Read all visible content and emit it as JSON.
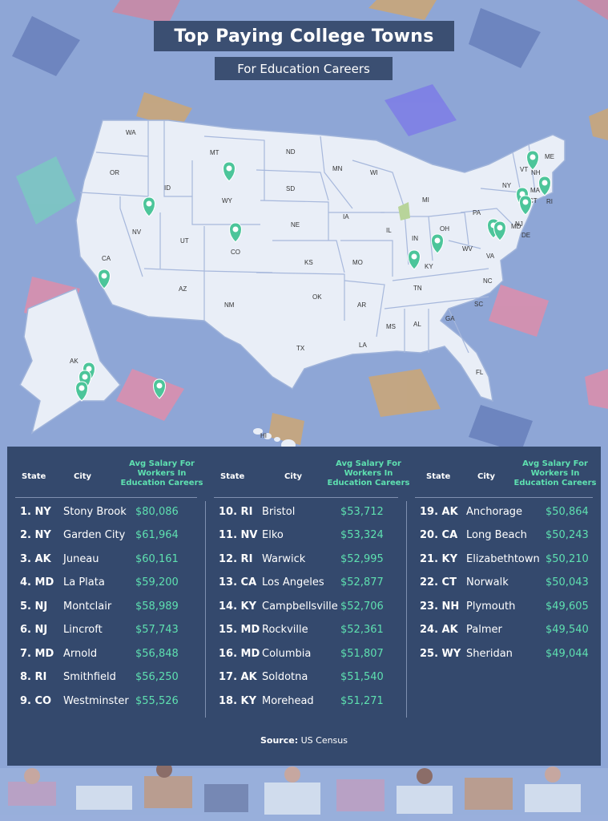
{
  "title": "Top Paying College Towns",
  "subtitle": "For Education Careers",
  "table": {
    "headers": {
      "state": "State",
      "city": "City",
      "salary": "Avg Salary For Workers In Education Careers"
    },
    "columns": [
      [
        {
          "state": "1. NY",
          "city": "Stony Brook",
          "salary": "$80,086"
        },
        {
          "state": "2. NY",
          "city": "Garden City",
          "salary": "$61,964"
        },
        {
          "state": "3. AK",
          "city": "Juneau",
          "salary": "$60,161"
        },
        {
          "state": "4. MD",
          "city": "La Plata",
          "salary": "$59,200"
        },
        {
          "state": "5. NJ",
          "city": "Montclair",
          "salary": "$58,989"
        },
        {
          "state": "6. NJ",
          "city": "Lincroft",
          "salary": "$57,743"
        },
        {
          "state": "7. MD",
          "city": "Arnold",
          "salary": "$56,848"
        },
        {
          "state": "8. RI",
          "city": "Smithfield",
          "salary": "$56,250"
        },
        {
          "state": "9. CO",
          "city": "Westminster",
          "salary": "$55,526"
        }
      ],
      [
        {
          "state": "10. RI",
          "city": "Bristol",
          "salary": "$53,712"
        },
        {
          "state": "11. NV",
          "city": "Elko",
          "salary": "$53,324"
        },
        {
          "state": "12. RI",
          "city": "Warwick",
          "salary": "$52,995"
        },
        {
          "state": "13. CA",
          "city": "Los Angeles",
          "salary": "$52,877"
        },
        {
          "state": "14. KY",
          "city": "Campbellsville",
          "salary": "$52,706"
        },
        {
          "state": "15. MD",
          "city": "Rockville",
          "salary": "$52,361"
        },
        {
          "state": "16. MD",
          "city": "Columbia",
          "salary": "$51,807"
        },
        {
          "state": "17. AK",
          "city": "Soldotna",
          "salary": "$51,540"
        },
        {
          "state": "18. KY",
          "city": "Morehead",
          "salary": "$51,271"
        }
      ],
      [
        {
          "state": "19. AK",
          "city": "Anchorage",
          "salary": "$50,864"
        },
        {
          "state": "20. CA",
          "city": "Long Beach",
          "salary": "$50,243"
        },
        {
          "state": "21. KY",
          "city": "Elizabethtown",
          "salary": "$50,210"
        },
        {
          "state": "22. CT",
          "city": "Norwalk",
          "salary": "$50,043"
        },
        {
          "state": "23. NH",
          "city": "Plymouth",
          "salary": "$49,605"
        },
        {
          "state": "24. AK",
          "city": "Palmer",
          "salary": "$49,540"
        },
        {
          "state": "25. WY",
          "city": "Sheridan",
          "salary": "$49,044"
        }
      ]
    ]
  },
  "source": {
    "label": "Source:",
    "value": "US Census"
  },
  "map": {
    "state_labels": [
      "WA",
      "OR",
      "CA",
      "NV",
      "ID",
      "MT",
      "WY",
      "UT",
      "AZ",
      "CO",
      "NM",
      "ND",
      "SD",
      "NE",
      "KS",
      "OK",
      "TX",
      "MN",
      "IA",
      "MO",
      "AR",
      "LA",
      "WI",
      "IL",
      "MI",
      "IN",
      "OH",
      "KY",
      "TN",
      "MS",
      "AL",
      "GA",
      "FL",
      "SC",
      "NC",
      "VA",
      "WV",
      "PA",
      "NY",
      "VT",
      "NH",
      "ME",
      "MA",
      "CT",
      "RI",
      "NJ",
      "DE",
      "MD",
      "AK",
      "HI"
    ],
    "pin_icon": "apple-pin-icon"
  },
  "colors": {
    "background": "#8ea6d6",
    "panel": "#34496d",
    "title_box": "#3b4f72",
    "salary_text": "#5ee0b0",
    "pin": "#4cc59a",
    "map_land": "#e9eef7"
  }
}
